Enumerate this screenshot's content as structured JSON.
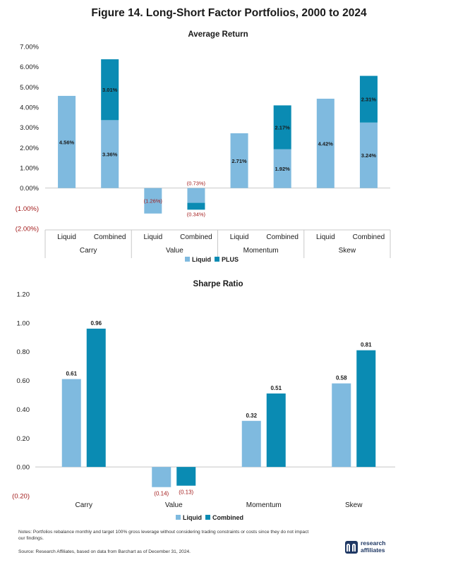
{
  "figure_title": "Figure 14. Long-Short Factor Portfolios, 2000 to 2024",
  "colors": {
    "liquid": "#7fbadf",
    "plus": "#0a8bb3",
    "negative_text": "#a31c1c"
  },
  "chart_data": [
    {
      "type": "bar",
      "stacked": true,
      "title": "Average Return",
      "groups": [
        "Carry",
        "Value",
        "Momentum",
        "Skew"
      ],
      "categories": [
        "Liquid",
        "Combined",
        "Liquid",
        "Combined",
        "Liquid",
        "Combined",
        "Liquid",
        "Combined"
      ],
      "series": [
        {
          "name": "Liquid",
          "values": [
            4.56,
            3.36,
            -1.26,
            -0.73,
            2.71,
            1.92,
            4.42,
            3.24
          ]
        },
        {
          "name": "PLUS",
          "values": [
            0,
            3.01,
            0,
            -0.34,
            0,
            2.17,
            0,
            2.31
          ]
        }
      ],
      "segment_labels": [
        [
          "4.56%",
          "3.36%",
          "(1.26%)",
          "(0.73%)",
          "2.71%",
          "1.92%",
          "4.42%",
          "3.24%"
        ],
        [
          "",
          "3.01%",
          "",
          "(0.34%)",
          "",
          "2.17%",
          "",
          "2.31%"
        ]
      ],
      "ylim": [
        -2,
        7
      ],
      "yticks": [
        7,
        6,
        5,
        4,
        3,
        2,
        1,
        0,
        -1,
        -2
      ],
      "ytick_labels": [
        "7.00%",
        "6.00%",
        "5.00%",
        "4.00%",
        "3.00%",
        "2.00%",
        "1.00%",
        "0.00%",
        "(1.00%)",
        "(2.00%)"
      ],
      "legend": [
        "Liquid",
        "PLUS"
      ],
      "legend_position": "bottom",
      "grid": false
    },
    {
      "type": "bar",
      "title": "Sharpe Ratio",
      "categories": [
        "Carry",
        "Value",
        "Momentum",
        "Skew"
      ],
      "series": [
        {
          "name": "Liquid",
          "values": [
            0.61,
            -0.14,
            0.32,
            0.58
          ],
          "labels": [
            "0.61",
            "(0.14)",
            "0.32",
            "0.58"
          ]
        },
        {
          "name": "Combined",
          "values": [
            0.96,
            -0.13,
            0.51,
            0.81
          ],
          "labels": [
            "0.96",
            "(0.13)",
            "0.51",
            "0.81"
          ]
        }
      ],
      "ylim": [
        -0.2,
        1.2
      ],
      "yticks": [
        1.2,
        1.0,
        0.8,
        0.6,
        0.4,
        0.2,
        0,
        -0.2
      ],
      "ytick_labels": [
        "1.20",
        "1.00",
        "0.80",
        "0.60",
        "0.40",
        "0.20",
        "0.00",
        "(0.20)"
      ],
      "legend": [
        "Liquid",
        "Combined"
      ],
      "legend_position": "bottom",
      "grid": false
    }
  ],
  "notes": "Notes: Portfolios rebalance monthly and target 100% gross leverage without considering trading constraints or costs since they do not impact our findings.",
  "source": "Source: Research Affiliates, based on data from Barchart as of December 31, 2024.",
  "logo": {
    "line1": "research",
    "line2": "affiliates"
  }
}
